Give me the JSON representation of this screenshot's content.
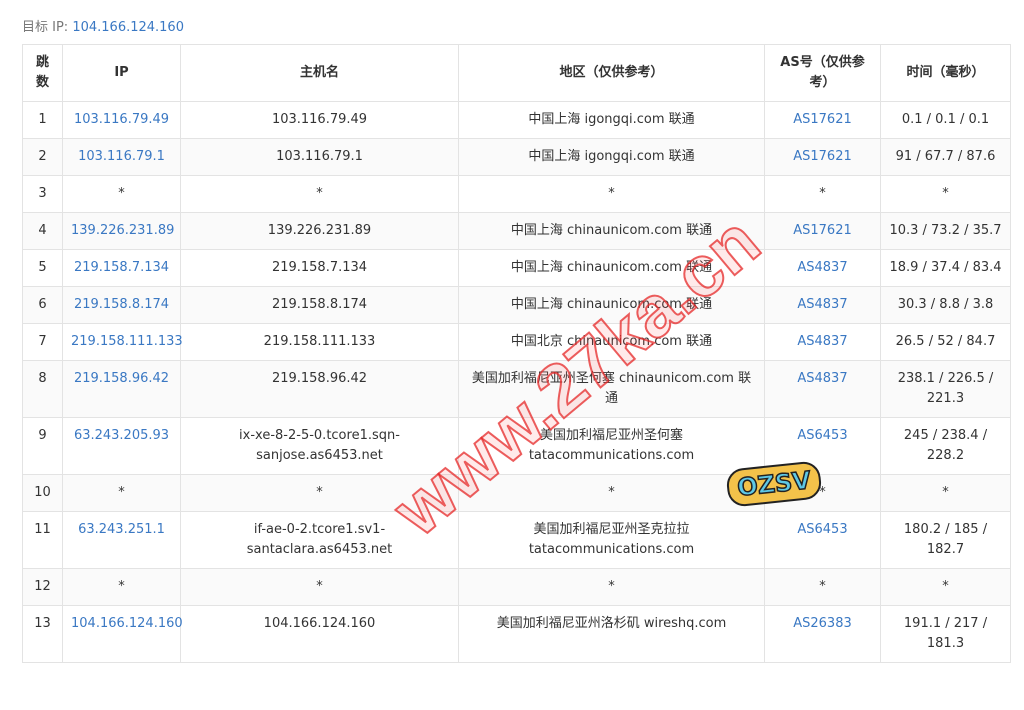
{
  "header": {
    "label": "目标 IP:",
    "ip": "104.166.124.160"
  },
  "table": {
    "columns": [
      "跳数",
      "IP",
      "主机名",
      "地区（仅供参考）",
      "AS号（仅供参考）",
      "时间（毫秒）"
    ],
    "rows": [
      [
        "1",
        "103.116.79.49",
        "103.116.79.49",
        "中国上海 igongqi.com 联通",
        "AS17621",
        "0.1 / 0.1 / 0.1"
      ],
      [
        "2",
        "103.116.79.1",
        "103.116.79.1",
        "中国上海 igongqi.com 联通",
        "AS17621",
        "91 / 67.7 / 87.6"
      ],
      [
        "3",
        "*",
        "*",
        "*",
        "*",
        "*"
      ],
      [
        "4",
        "139.226.231.89",
        "139.226.231.89",
        "中国上海 chinaunicom.com 联通",
        "AS17621",
        "10.3 / 73.2 / 35.7"
      ],
      [
        "5",
        "219.158.7.134",
        "219.158.7.134",
        "中国上海 chinaunicom.com 联通",
        "AS4837",
        "18.9 / 37.4 / 83.4"
      ],
      [
        "6",
        "219.158.8.174",
        "219.158.8.174",
        "中国上海 chinaunicom.com 联通",
        "AS4837",
        "30.3 / 8.8 / 3.8"
      ],
      [
        "7",
        "219.158.111.133",
        "219.158.111.133",
        "中国北京 chinaunicom.com 联通",
        "AS4837",
        "26.5 / 52 / 84.7"
      ],
      [
        "8",
        "219.158.96.42",
        "219.158.96.42",
        "美国加利福尼亚州圣何塞 chinaunicom.com 联通",
        "AS4837",
        "238.1 / 226.5 / 221.3"
      ],
      [
        "9",
        "63.243.205.93",
        "ix-xe-8-2-5-0.tcore1.sqn-sanjose.as6453.net",
        "美国加利福尼亚州圣何塞 tatacommunications.com",
        "AS6453",
        "245 / 238.4 / 228.2"
      ],
      [
        "10",
        "*",
        "*",
        "*",
        "*",
        "*"
      ],
      [
        "11",
        "63.243.251.1",
        "if-ae-0-2.tcore1.sv1-santaclara.as6453.net",
        "美国加利福尼亚州圣克拉拉 tatacommunications.com",
        "AS6453",
        "180.2 / 185 / 182.7"
      ],
      [
        "12",
        "*",
        "*",
        "*",
        "*",
        "*"
      ],
      [
        "13",
        "104.166.124.160",
        "104.166.124.160",
        "美国加利福尼亚州洛杉矶 wireshq.com",
        "AS26383",
        "191.1 / 217 / 181.3"
      ]
    ]
  },
  "watermark": "www.27ka.cn",
  "badge": "OZSV"
}
